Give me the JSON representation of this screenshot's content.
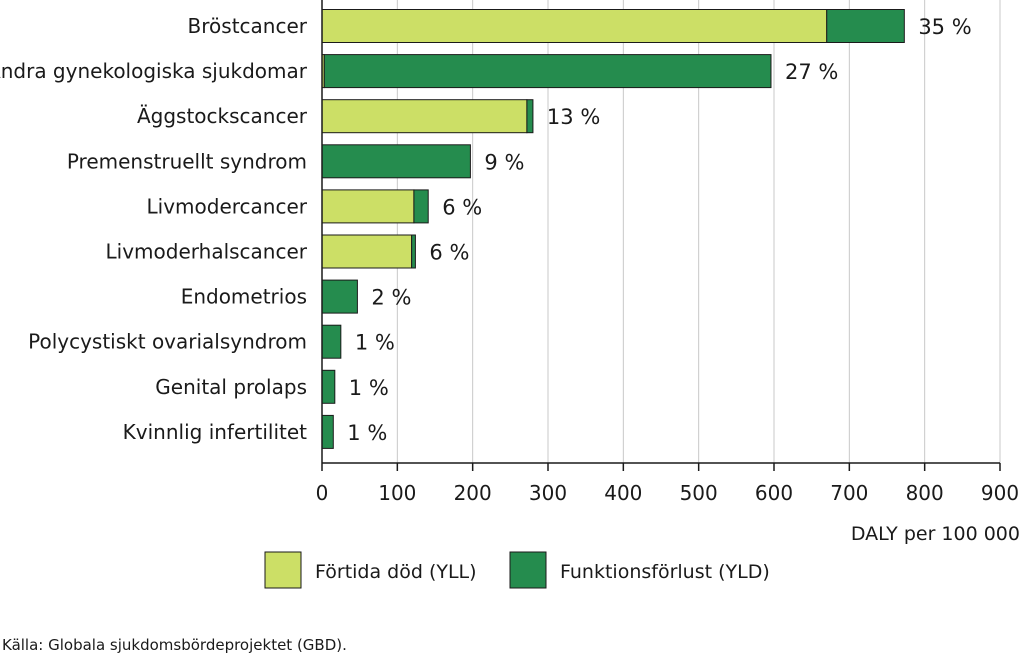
{
  "chart_data": {
    "type": "bar",
    "orientation": "horizontal",
    "stacked": true,
    "categories": [
      "Bröstcancer",
      "Andra gynekologiska sjukdomar",
      "Äggstockscancer",
      "Premenstruellt syndrom",
      "Livmodercancer",
      "Livmoderhalscancer",
      "Endometrios",
      "Polycystiskt ovarialsyndrom",
      "Genital prolaps",
      "Kvinnlig infertilitet"
    ],
    "series": [
      {
        "name": "Förtida död (YLL)",
        "color": "#ccdf66",
        "values": [
          670,
          3,
          272,
          0,
          122,
          119,
          0,
          0,
          0,
          0
        ]
      },
      {
        "name": "Funktionsförlust (YLD)",
        "color": "#258c4e",
        "values": [
          103,
          593,
          8,
          197,
          19,
          5,
          47,
          25,
          17,
          15
        ]
      }
    ],
    "percent_labels": [
      "35 %",
      "27 %",
      "13 %",
      "9 %",
      "6 %",
      "6 %",
      "2 %",
      "1 %",
      "1 %",
      "1 %"
    ],
    "xlabel": "DALY per 100 000",
    "xlim": [
      0,
      900
    ],
    "xticks": [
      "0",
      "100",
      "200",
      "300",
      "400",
      "500",
      "600",
      "700",
      "800",
      "900"
    ],
    "grid": true,
    "legend_position": "bottom"
  },
  "source_note": "Källa: Globala sjukdomsbördeprojektet (GBD)."
}
